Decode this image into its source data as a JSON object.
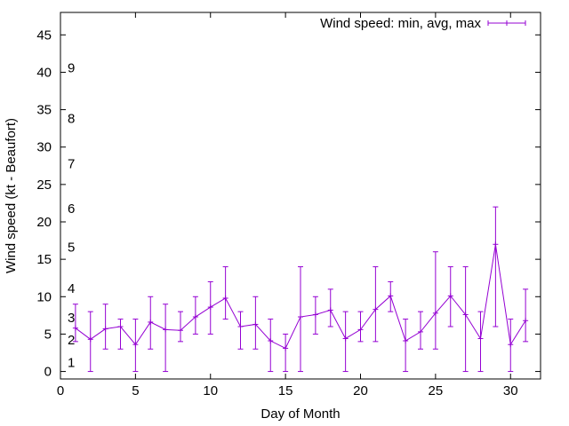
{
  "chart_data": {
    "type": "line",
    "xlabel": "Day of Month",
    "ylabel": "Wind speed (kt - Beaufort)",
    "xlim": [
      0,
      32
    ],
    "ylim": [
      -1,
      48
    ],
    "xticks": [
      0,
      5,
      10,
      15,
      20,
      25,
      30
    ],
    "yticks": [
      0,
      5,
      10,
      15,
      20,
      25,
      30,
      35,
      40,
      45
    ],
    "grid": false,
    "legend_position": "top-right",
    "color": "#9400d3",
    "series": [
      {
        "name": "Wind speed: min, avg, max",
        "x": [
          1,
          2,
          3,
          4,
          5,
          6,
          7,
          8,
          9,
          10,
          11,
          12,
          13,
          14,
          15,
          16,
          17,
          18,
          19,
          20,
          21,
          22,
          23,
          24,
          25,
          26,
          27,
          28,
          29,
          30,
          31
        ],
        "avg": [
          5.8,
          4.3,
          5.7,
          6.0,
          3.6,
          6.6,
          5.6,
          5.5,
          7.3,
          8.6,
          9.8,
          6.0,
          6.3,
          4.1,
          3.1,
          7.3,
          7.6,
          8.2,
          4.4,
          5.6,
          8.3,
          10.1,
          4.1,
          5.3,
          7.8,
          10.1,
          7.6,
          4.4,
          17.0,
          3.6,
          6.8
        ],
        "min": [
          4,
          0,
          3,
          3,
          0,
          3,
          0,
          4,
          5,
          5,
          7,
          3,
          3,
          0,
          0,
          0,
          5,
          6,
          0,
          4,
          4,
          8,
          0,
          3,
          3,
          6,
          0,
          0,
          6,
          0,
          4
        ],
        "max": [
          9,
          8,
          9,
          7,
          7,
          10,
          9,
          8,
          10,
          12,
          14,
          8,
          10,
          7,
          5,
          14,
          10,
          11,
          8,
          8,
          14,
          12,
          7,
          8,
          16,
          14,
          14,
          8,
          22,
          7,
          11
        ]
      }
    ],
    "beaufort_labels": [
      {
        "label": "1",
        "y": 1.2
      },
      {
        "label": "2",
        "y": 4.2
      },
      {
        "label": "3",
        "y": 7.2
      },
      {
        "label": "4",
        "y": 11.1
      },
      {
        "label": "5",
        "y": 16.6
      },
      {
        "label": "6",
        "y": 21.8
      },
      {
        "label": "7",
        "y": 27.8
      },
      {
        "label": "8",
        "y": 33.8
      },
      {
        "label": "9",
        "y": 40.6
      }
    ]
  }
}
